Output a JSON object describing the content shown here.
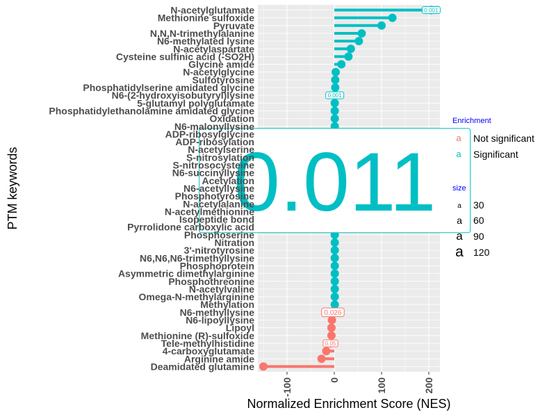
{
  "chart_data": {
    "type": "lollipop",
    "orientation": "horizontal",
    "xlabel": "Normalized Enrichment Score (NES)",
    "ylabel": "PTM keywords",
    "xlim": [
      -160,
      220
    ],
    "xticks": [
      -100,
      0,
      100,
      200
    ],
    "grid": true,
    "legend_position": "right",
    "colors": {
      "Not significant": "#F8766D",
      "Significant": "#00BFC4"
    },
    "categories": [
      "N-acetylglutamate",
      "Methionine sulfoxide",
      "Pyruvate",
      "N,N,N-trimethylalanine",
      "N6-methylated lysine",
      "N-acetylaspartate",
      "Cysteine sulfinic acid (-SO2H)",
      "Glycine amide",
      "N-acetylglycine",
      "Sulfotyrosine",
      "Phosphatidylserine amidated glycine",
      "N6-(2-hydroxyisobutyryl)lysine",
      "5-glutamyl polyglutamate",
      "Phosphatidylethanolamine amidated glycine",
      "Oxidation",
      "N6-malonyllysine",
      "ADP-ribosylglycine",
      "ADP-ribosylation",
      "N-acetylserine",
      "S-nitrosylation",
      "S-nitrosocysteine",
      "N6-succinyllysine",
      "Acetylation",
      "N6-acetyllysine",
      "Phosphotyrosine",
      "N-acetylalanine",
      "N-acetylmethionine",
      "Isopeptide bond",
      "Pyrrolidone carboxylic acid",
      "Phosphoserine",
      "Nitration",
      "3'-nitrotyrosine",
      "N6,N6,N6-trimethyllysine",
      "Phosphoprotein",
      "Asymmetric dimethylarginine",
      "Phosphothreonine",
      "N-acetylvaline",
      "Omega-N-methylarginine",
      "Methylation",
      "N6-methyllysine",
      "N6-lipoyllysine",
      "Lipoyl",
      "Methionine (R)-sulfoxide",
      "Tele-methylhistidine",
      "4-carboxyglutamate",
      "Arginine amide",
      "Deamidated glutamine"
    ],
    "values": [
      205,
      123,
      100,
      58,
      52,
      35,
      30,
      15,
      3,
      2,
      2,
      1,
      1,
      1,
      1,
      1,
      1,
      1,
      1,
      1,
      1,
      1,
      1,
      1,
      1,
      1,
      1,
      1,
      1,
      1,
      1,
      1,
      1,
      1,
      1,
      1,
      1,
      1,
      1,
      -3,
      -5,
      -6,
      -6,
      -8,
      -17,
      -27,
      -150
    ],
    "significance": [
      "Significant",
      "Significant",
      "Significant",
      "Significant",
      "Significant",
      "Significant",
      "Significant",
      "Significant",
      "Significant",
      "Significant",
      "Significant",
      "Significant",
      "Significant",
      "Significant",
      "Significant",
      "Significant",
      "Significant",
      "Significant",
      "Significant",
      "Significant",
      "Significant",
      "Significant",
      "Significant",
      "Significant",
      "Significant",
      "Significant",
      "Significant",
      "Significant",
      "Significant",
      "Significant",
      "Significant",
      "Significant",
      "Significant",
      "Significant",
      "Significant",
      "Significant",
      "Significant",
      "Significant",
      "Significant",
      "Not significant",
      "Not significant",
      "Not significant",
      "Not significant",
      "Not significant",
      "Not significant",
      "Not significant",
      "Not significant"
    ],
    "annotations": [
      {
        "category": "N-acetylglutamate",
        "label": "0.001",
        "size": 8
      },
      {
        "category": "N6-(2-hydroxyisobutyryl)lysine",
        "label": "0.001",
        "size": 8
      },
      {
        "category": "Acetylation",
        "label": "0.011",
        "size": 120
      },
      {
        "category": "N6-methyllysine",
        "label": "0.026",
        "size": 10
      },
      {
        "category": "Tele-methylhistidine",
        "label": "0.05",
        "size": 8
      }
    ],
    "legend": {
      "color": {
        "title": "Enrichment",
        "entries": [
          "Not significant",
          "Significant"
        ]
      },
      "size": {
        "title": "size",
        "entries": [
          "30",
          "60",
          "90",
          "120"
        ]
      }
    }
  }
}
